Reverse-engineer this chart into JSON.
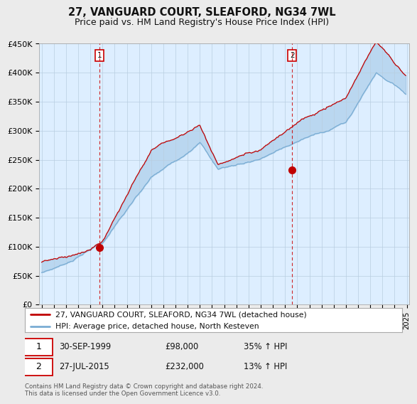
{
  "title": "27, VANGUARD COURT, SLEAFORD, NG34 7WL",
  "subtitle": "Price paid vs. HM Land Registry's House Price Index (HPI)",
  "ylim": [
    0,
    450000
  ],
  "yticks": [
    0,
    50000,
    100000,
    150000,
    200000,
    250000,
    300000,
    350000,
    400000,
    450000
  ],
  "ytick_labels": [
    "£0",
    "£50K",
    "£100K",
    "£150K",
    "£200K",
    "£250K",
    "£300K",
    "£350K",
    "£400K",
    "£450K"
  ],
  "hpi_color": "#7aadd4",
  "price_color": "#c00000",
  "vline_color": "#cc0000",
  "fill_color": "#ddeeff",
  "sale1_year": 1999.75,
  "sale1_price": 98000,
  "sale2_year": 2015.58,
  "sale2_price": 232000,
  "legend_line1": "27, VANGUARD COURT, SLEAFORD, NG34 7WL (detached house)",
  "legend_line2": "HPI: Average price, detached house, North Kesteven",
  "annotation1_date": "30-SEP-1999",
  "annotation1_price": "£98,000",
  "annotation1_hpi": "35% ↑ HPI",
  "annotation2_date": "27-JUL-2015",
  "annotation2_price": "£232,000",
  "annotation2_hpi": "13% ↑ HPI",
  "footer": "Contains HM Land Registry data © Crown copyright and database right 2024.\nThis data is licensed under the Open Government Licence v3.0.",
  "background_color": "#ebebeb",
  "plot_bg_color": "#ddeeff",
  "title_fontsize": 10.5,
  "subtitle_fontsize": 9
}
